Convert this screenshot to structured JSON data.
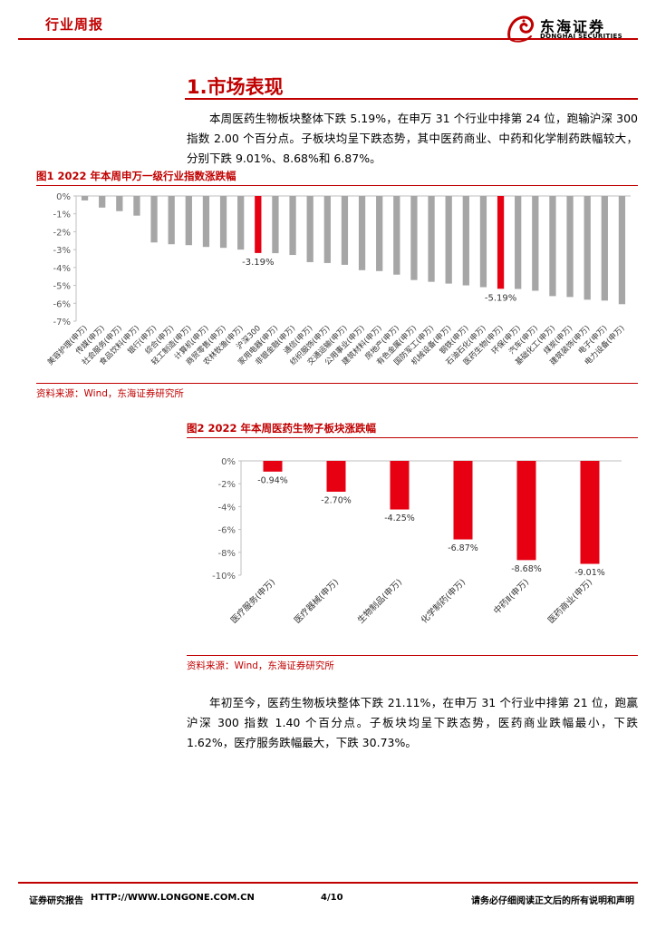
{
  "header": {
    "label": "行业周报"
  },
  "logo": {
    "cn": "东海证券",
    "en": "DONGHAI SECURITIES"
  },
  "section": {
    "title": "1.市场表现"
  },
  "para1": "本周医药生物板块整体下跌 5.19%，在申万 31 个行业中排第 24 位，跑输沪深 300 指数 2.00 个百分点。子板块均呈下跌态势，其中医药商业、中药和化学制药跌幅较大，分别下跌 9.01%、8.68%和 6.87%。",
  "para2": "年初至今，医药生物板块整体下跌 21.11%，在申万 31 个行业中排第 21 位，跑赢沪深 300 指数 1.40 个百分点。子板块均呈下跌态势，医药商业跌幅最小，下跌 1.62%，医疗服务跌幅最大，下跌 30.73%。",
  "figure1": {
    "title": "图1  2022 年本周申万一级行业指数涨跌幅",
    "source": "资料来源：Wind，东海证券研究所"
  },
  "figure2": {
    "title": "图2  2022 年本周医药生物子板块涨跌幅",
    "source": "资料来源：Wind，东海证券研究所"
  },
  "footer": {
    "left": "证券研究报告",
    "url": "HTTP://WWW.LONGONE.COM.CN",
    "page": "4/10",
    "right": "请务必仔细阅读正文后的所有说明和声明"
  },
  "colors": {
    "accent": "#c00000",
    "bar_gray": "#a6a6a6",
    "bar_red": "#e60012"
  },
  "chart_data": [
    {
      "type": "bar",
      "categories": [
        "美容护理(申万)",
        "传媒(申万)",
        "社会服务(申万)",
        "食品饮料(申万)",
        "银行(申万)",
        "综合(申万)",
        "轻工制造(申万)",
        "计算机(申万)",
        "商贸零售(申万)",
        "农林牧渔(申万)",
        "沪深300",
        "家用电器(申万)",
        "非银金融(申万)",
        "通信(申万)",
        "纺织服饰(申万)",
        "交通运输(申万)",
        "公用事业(申万)",
        "建筑材料(申万)",
        "房地产(申万)",
        "有色金属(申万)",
        "国防军工(申万)",
        "机械设备(申万)",
        "钢铁(申万)",
        "石油石化(申万)",
        "医药生物(申万)",
        "环保(申万)",
        "汽车(申万)",
        "基础化工(申万)",
        "煤炭(申万)",
        "建筑装饰(申万)",
        "电子(申万)",
        "电力设备(申万)"
      ],
      "values": [
        -0.25,
        -0.65,
        -0.85,
        -1.1,
        -2.6,
        -2.7,
        -2.75,
        -2.85,
        -2.9,
        -3.0,
        -3.19,
        -3.2,
        -3.3,
        -3.7,
        -3.75,
        -3.85,
        -4.15,
        -4.2,
        -4.4,
        -4.7,
        -4.8,
        -4.9,
        -5.0,
        -5.1,
        -5.19,
        -5.2,
        -5.3,
        -5.6,
        -5.65,
        -5.8,
        -5.85,
        -6.05
      ],
      "highlight": [
        "沪深300",
        "医药生物(申万)"
      ],
      "data_labels": {
        "沪深300": "-3.19%",
        "医药生物(申万)": "-5.19%"
      },
      "yticks": [
        "0%",
        "-1%",
        "-2%",
        "-3%",
        "-4%",
        "-5%",
        "-6%",
        "-7%"
      ],
      "ylim": [
        -7,
        0
      ]
    },
    {
      "type": "bar",
      "categories": [
        "医疗服务(申万)",
        "医疗器械(申万)",
        "生物制品(申万)",
        "化学制药(申万)",
        "中药Ⅱ(申万)",
        "医药商业(申万)"
      ],
      "values": [
        -0.94,
        -2.7,
        -4.25,
        -6.87,
        -8.68,
        -9.01
      ],
      "data_labels": [
        "-0.94%",
        "-2.70%",
        "-4.25%",
        "-6.87%",
        "-8.68%",
        "-9.01%"
      ],
      "yticks": [
        "0%",
        "-2%",
        "-4%",
        "-6%",
        "-8%",
        "-10%"
      ],
      "ylim": [
        -10,
        0
      ]
    }
  ]
}
